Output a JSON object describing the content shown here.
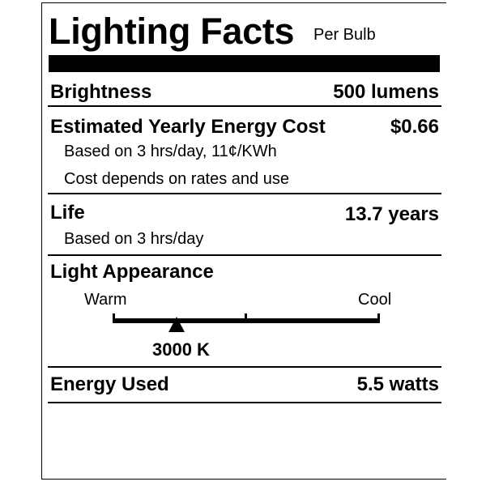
{
  "header": {
    "title": "Lighting Facts",
    "subtitle": "Per Bulb"
  },
  "brightness": {
    "label": "Brightness",
    "value": "500 lumens"
  },
  "cost": {
    "label": "Estimated Yearly Energy Cost",
    "value": "$0.66",
    "note1": "Based on 3 hrs/day, 11¢/KWh",
    "note2": "Cost depends on rates and use"
  },
  "life": {
    "label": "Life",
    "value": "13.7 years",
    "note": "Based on 3 hrs/day"
  },
  "appearance": {
    "label": "Light Appearance",
    "warm_label": "Warm",
    "cool_label": "Cool",
    "value": "3000 K",
    "marker_fraction": 0.24
  },
  "energy": {
    "label": "Energy Used",
    "value": "5.5 watts"
  }
}
